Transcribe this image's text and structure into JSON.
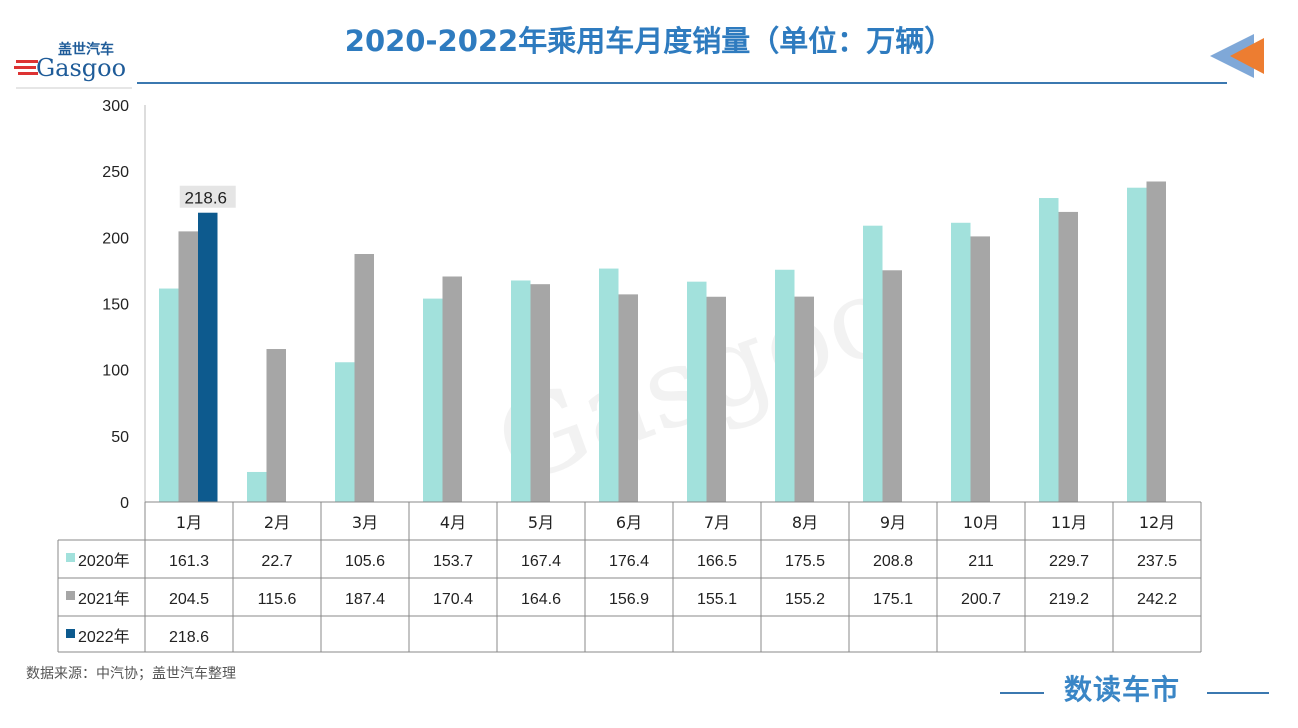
{
  "title": "2020-2022年乘用车月度销量（单位：万辆）",
  "logo": {
    "cn": "盖世汽车",
    "en": "Gasgoo"
  },
  "source": "数据来源：中汽协；盖世汽车整理",
  "brand": "数读车市",
  "chart_data": {
    "type": "bar",
    "title": "2020-2022年乘用车月度销量（单位：万辆）",
    "categories": [
      "1月",
      "2月",
      "3月",
      "4月",
      "5月",
      "6月",
      "7月",
      "8月",
      "9月",
      "10月",
      "11月",
      "12月"
    ],
    "ylim": [
      0,
      300
    ],
    "yticks": [
      0,
      50,
      100,
      150,
      200,
      250,
      300
    ],
    "grid": false,
    "legend": "table-left",
    "series": [
      {
        "name": "2020年",
        "color": "#a2e1dc",
        "values": [
          161.3,
          22.7,
          105.6,
          153.7,
          167.4,
          176.4,
          166.5,
          175.5,
          208.8,
          211,
          229.7,
          237.5
        ]
      },
      {
        "name": "2021年",
        "color": "#a6a6a6",
        "values": [
          204.5,
          115.6,
          187.4,
          170.4,
          164.6,
          156.9,
          155.1,
          155.2,
          175.1,
          200.7,
          219.2,
          242.2
        ]
      },
      {
        "name": "2022年",
        "color": "#0d5a8e",
        "values": [
          218.6,
          null,
          null,
          null,
          null,
          null,
          null,
          null,
          null,
          null,
          null,
          null
        ]
      }
    ],
    "annotations": [
      {
        "series": "2022年",
        "category": "1月",
        "text": "218.6"
      }
    ]
  }
}
